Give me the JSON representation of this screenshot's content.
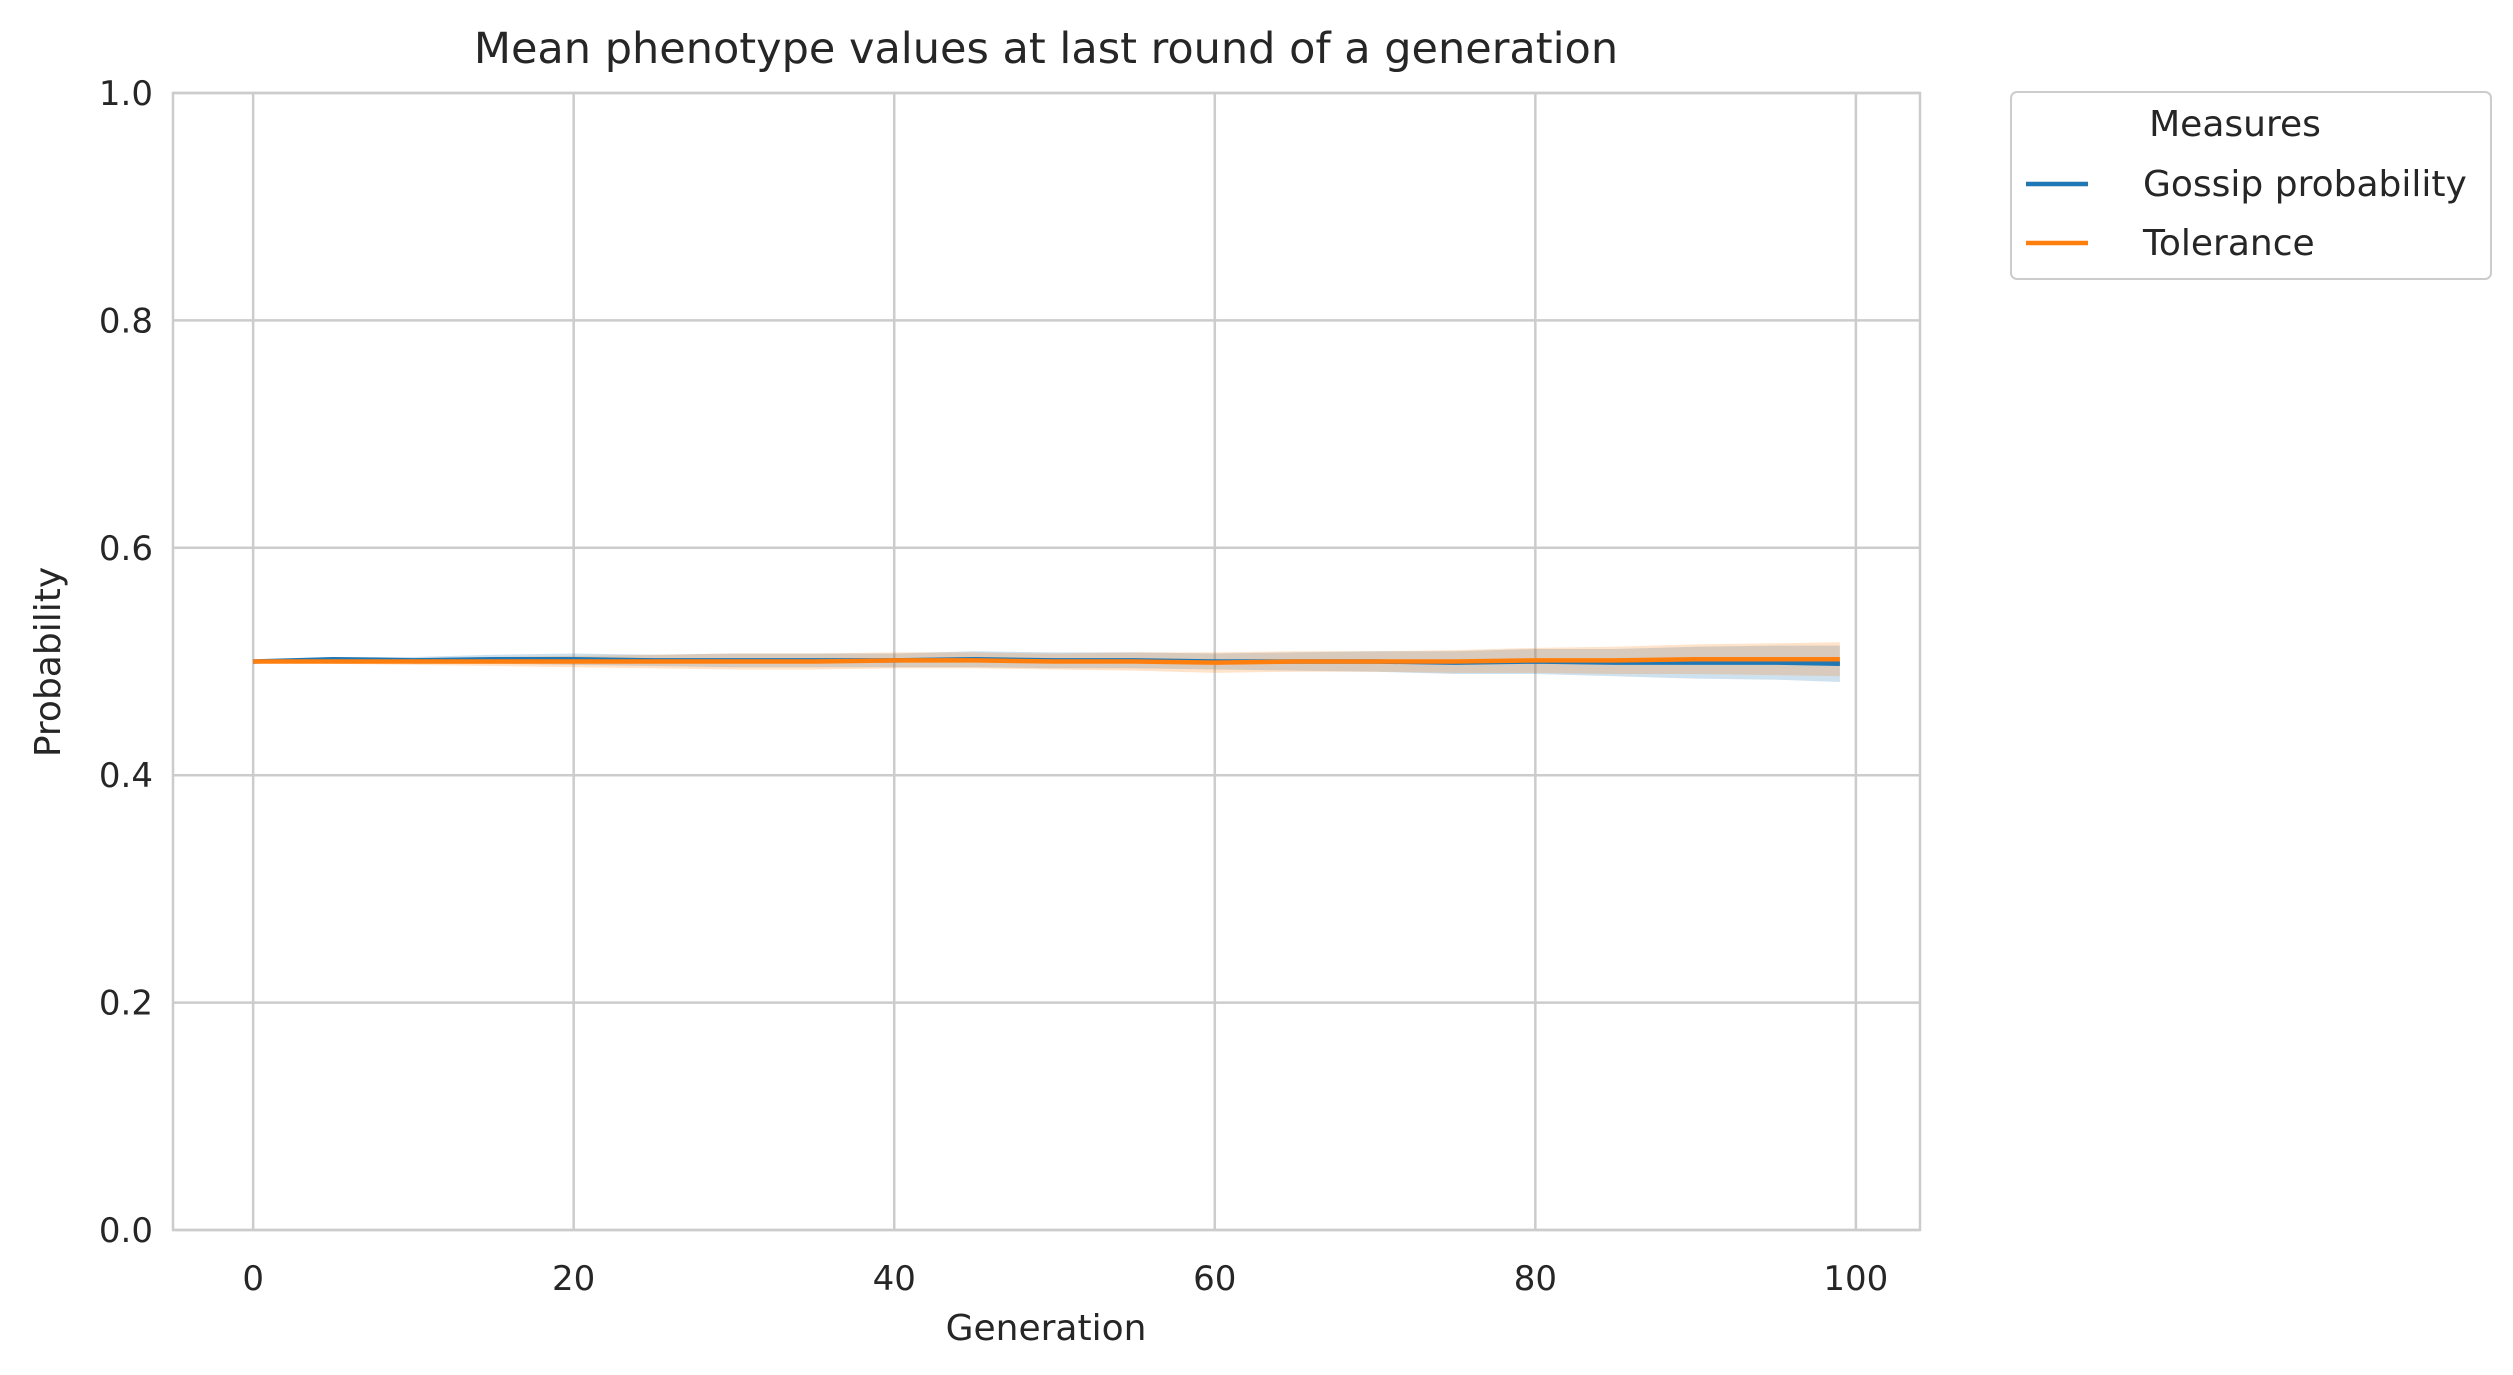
{
  "chart_data": {
    "type": "line",
    "title": "Mean phenotype values at last round of a generation",
    "xlabel": "Generation",
    "ylabel": "Probability",
    "xlim": [
      -5,
      104
    ],
    "ylim": [
      0,
      1
    ],
    "xticks": [
      0,
      20,
      40,
      60,
      80,
      100
    ],
    "yticks": [
      0.0,
      0.2,
      0.4,
      0.6,
      0.8,
      1.0
    ],
    "ytick_labels": [
      "0.0",
      "0.2",
      "0.4",
      "0.6",
      "0.8",
      "1.0"
    ],
    "grid": true,
    "legend": {
      "title": "Measures",
      "placement": "outside-top-right"
    },
    "x": [
      0,
      5,
      10,
      15,
      20,
      25,
      30,
      35,
      40,
      45,
      50,
      55,
      60,
      65,
      70,
      75,
      80,
      85,
      90,
      95,
      99
    ],
    "series": [
      {
        "name": "Gossip probability",
        "color": "#1f77b4",
        "values": [
          0.5,
          0.502,
          0.501,
          0.502,
          0.502,
          0.501,
          0.501,
          0.501,
          0.501,
          0.502,
          0.501,
          0.501,
          0.5,
          0.5,
          0.5,
          0.499,
          0.5,
          0.499,
          0.499,
          0.499,
          0.498
        ],
        "ci_lower": [
          0.499,
          0.5,
          0.498,
          0.498,
          0.497,
          0.496,
          0.495,
          0.495,
          0.495,
          0.495,
          0.494,
          0.494,
          0.493,
          0.492,
          0.491,
          0.489,
          0.489,
          0.487,
          0.485,
          0.484,
          0.482
        ],
        "ci_upper": [
          0.501,
          0.504,
          0.504,
          0.506,
          0.507,
          0.506,
          0.507,
          0.507,
          0.507,
          0.509,
          0.508,
          0.508,
          0.507,
          0.508,
          0.509,
          0.509,
          0.511,
          0.511,
          0.513,
          0.514,
          0.514
        ]
      },
      {
        "name": "Tolerance",
        "color": "#ff7f0e",
        "values": [
          0.5,
          0.5,
          0.5,
          0.5,
          0.5,
          0.5,
          0.5,
          0.5,
          0.501,
          0.501,
          0.5,
          0.5,
          0.499,
          0.5,
          0.5,
          0.5,
          0.501,
          0.501,
          0.502,
          0.502,
          0.502
        ],
        "ci_lower": [
          0.499,
          0.498,
          0.497,
          0.496,
          0.495,
          0.494,
          0.493,
          0.493,
          0.494,
          0.494,
          0.493,
          0.492,
          0.49,
          0.491,
          0.491,
          0.49,
          0.49,
          0.489,
          0.489,
          0.488,
          0.487
        ],
        "ci_upper": [
          0.501,
          0.502,
          0.503,
          0.504,
          0.505,
          0.506,
          0.507,
          0.507,
          0.508,
          0.508,
          0.507,
          0.508,
          0.508,
          0.509,
          0.509,
          0.51,
          0.512,
          0.513,
          0.515,
          0.516,
          0.517
        ]
      }
    ]
  }
}
